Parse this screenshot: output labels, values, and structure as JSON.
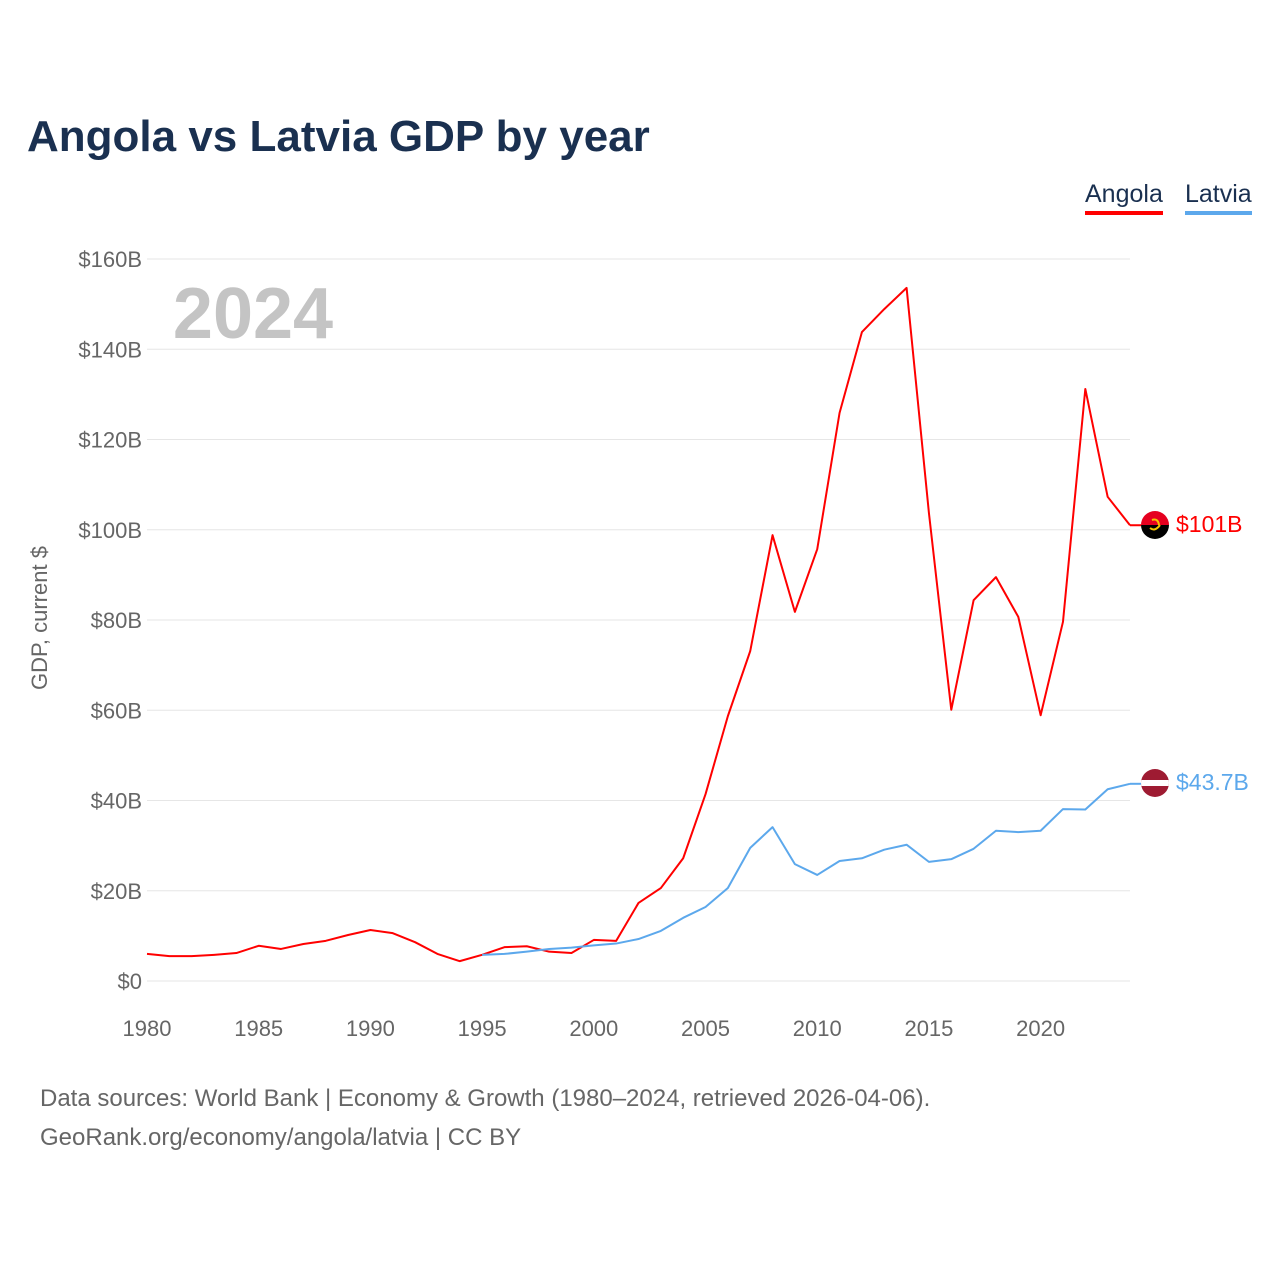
{
  "title": "Angola vs Latvia GDP by year",
  "legend": [
    {
      "name": "Angola",
      "color": "#ff0000"
    },
    {
      "name": "Latvia",
      "color": "#5ca8ec"
    }
  ],
  "footer": {
    "line1": "Data sources: World Bank | Economy & Growth (1980–2024, retrieved 2026-04-06).",
    "line2": "GeoRank.org/economy/angola/latvia | CC BY"
  },
  "chart_data": {
    "type": "line",
    "title": "Angola vs Latvia GDP by year",
    "xlabel": "",
    "ylabel": "GDP, current $",
    "year_watermark": "2024",
    "xlim": [
      1980,
      2024
    ],
    "ylim": [
      0,
      160
    ],
    "xticks": [
      1980,
      1985,
      1990,
      1995,
      2000,
      2005,
      2010,
      2015,
      2020
    ],
    "yticks": [
      0,
      20,
      40,
      60,
      80,
      100,
      120,
      140,
      160
    ],
    "ytick_labels": [
      "$0",
      "$20B",
      "$40B",
      "$60B",
      "$80B",
      "$100B",
      "$120B",
      "$140B",
      "$160B"
    ],
    "grid": true,
    "legend_position": "top-right",
    "series": [
      {
        "name": "Angola",
        "color": "#ff0000",
        "end_label": "$101B",
        "start_year": 1980,
        "values": [
          6.0,
          5.5,
          5.5,
          5.8,
          6.2,
          7.8,
          7.1,
          8.2,
          8.9,
          10.2,
          11.3,
          10.6,
          8.6,
          6.0,
          4.4,
          5.8,
          7.5,
          7.7,
          6.5,
          6.2,
          9.1,
          8.9,
          17.3,
          20.6,
          27.2,
          41.4,
          58.7,
          73.1,
          98.8,
          81.8,
          95.7,
          125.9,
          143.8,
          148.9,
          153.6,
          103.7,
          60.1,
          84.4,
          89.5,
          80.7,
          58.9,
          79.6,
          131.2,
          107.3,
          101.0
        ]
      },
      {
        "name": "Latvia",
        "color": "#5ca8ec",
        "end_label": "$43.7B",
        "start_year": 1995,
        "values": [
          5.8,
          6.0,
          6.5,
          7.1,
          7.4,
          7.9,
          8.3,
          9.3,
          11.1,
          14.0,
          16.4,
          20.6,
          29.5,
          34.1,
          25.9,
          23.5,
          26.6,
          27.2,
          29.1,
          30.2,
          26.4,
          27.0,
          29.3,
          33.3,
          33.0,
          33.3,
          38.1,
          38.0,
          42.5,
          43.7
        ]
      }
    ]
  }
}
